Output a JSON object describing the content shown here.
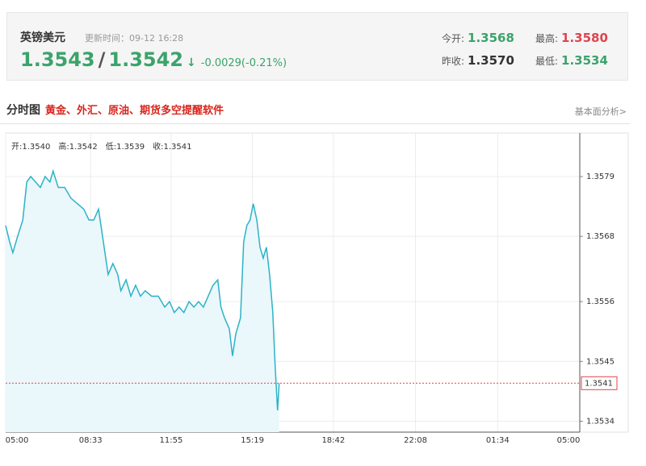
{
  "header": {
    "name": "英镑美元",
    "update_time": "更新时间：09-12 16:28",
    "bid": "1.3543",
    "separator": "/",
    "ask": "1.3542",
    "change": "-0.0029(-0.21%)",
    "stats": [
      {
        "label": "今开:",
        "value": "1.3568"
      },
      {
        "label": "最高:",
        "value": "1.3580"
      },
      {
        "label": "昨收:",
        "value": "1.3570"
      },
      {
        "label": "最低:",
        "value": "1.3534"
      }
    ]
  },
  "section": {
    "title": "分时图",
    "promo": "黄金、外汇、原油、期货多空提醒软件",
    "link": "基本面分析>"
  },
  "ohlc": [
    {
      "label": "开:",
      "value": "1.3540"
    },
    {
      "label": "高:",
      "value": "1.3542"
    },
    {
      "label": "低:",
      "value": "1.3539"
    },
    {
      "label": "收:",
      "value": "1.3541"
    }
  ],
  "chart_data": {
    "type": "area",
    "color": "#2bb3c7",
    "fill": "#eaf7fb",
    "grid": true,
    "x": [
      0,
      10,
      18,
      30,
      43,
      53,
      63,
      75,
      87,
      99,
      111,
      119,
      132,
      148,
      164,
      180,
      196,
      209,
      221,
      233,
      241,
      249,
      257,
      269,
      281,
      289,
      302,
      314,
      326,
      338,
      350,
      366,
      383,
      399,
      411,
      423,
      435,
      447,
      460,
      472,
      484,
      496,
      508,
      520,
      532,
      540,
      549,
      561,
      569,
      577,
      589,
      597,
      605,
      613,
      621,
      630,
      638,
      646,
      654,
      662,
      670,
      676,
      682,
      686
    ],
    "values": [
      1.357,
      1.3567,
      1.3565,
      1.3568,
      1.3571,
      1.3578,
      1.3579,
      1.3578,
      1.3577,
      1.3579,
      1.3578,
      1.358,
      1.3577,
      1.3577,
      1.3575,
      1.3574,
      1.3573,
      1.3571,
      1.3571,
      1.3573,
      1.3569,
      1.3565,
      1.3561,
      1.3563,
      1.3561,
      1.3558,
      1.356,
      1.3557,
      1.3559,
      1.3557,
      1.3558,
      1.3557,
      1.3557,
      1.3555,
      1.3556,
      1.3554,
      1.3555,
      1.3554,
      1.3556,
      1.3555,
      1.3556,
      1.3555,
      1.3557,
      1.3559,
      1.356,
      1.3555,
      1.3553,
      1.3551,
      1.3546,
      1.355,
      1.3553,
      1.3567,
      1.357,
      1.3571,
      1.3574,
      1.3571,
      1.3566,
      1.3564,
      1.3566,
      1.3561,
      1.3554,
      1.3544,
      1.3536,
      1.3541
    ],
    "xlim": [
      0,
      1440
    ],
    "xticks": [
      {
        "value": 0,
        "label": "05:00"
      },
      {
        "value": 213,
        "label": "08:33"
      },
      {
        "value": 415,
        "label": "11:55"
      },
      {
        "value": 619,
        "label": "15:19"
      },
      {
        "value": 822,
        "label": "18:42"
      },
      {
        "value": 1028,
        "label": "22:08"
      },
      {
        "value": 1234,
        "label": "01:34"
      },
      {
        "value": 1440,
        "label": "05:00"
      }
    ],
    "ylim": [
      1.3532,
      1.3587
    ],
    "yticks": [
      1.3579,
      1.3568,
      1.3556,
      1.3545,
      1.3534
    ],
    "last_price": 1.3541,
    "last_price_color": "#e0434f"
  }
}
